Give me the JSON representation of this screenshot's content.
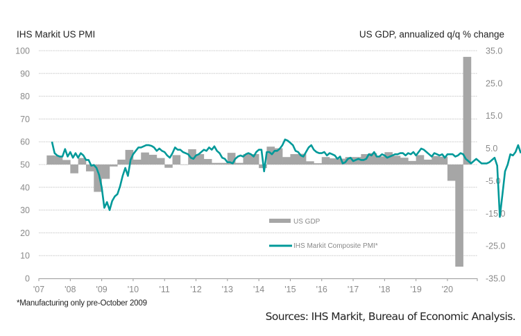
{
  "chart_data": {
    "type": "bar+line",
    "left_axis_title": "IHS Markit US PMI",
    "right_axis_title": "US GDP, annualized q/q % change",
    "left_ylim": [
      0,
      100
    ],
    "left_ticks": [
      "0",
      "10",
      "20",
      "30",
      "40",
      "50",
      "60",
      "70",
      "80",
      "90",
      "100"
    ],
    "right_ylim": [
      -35,
      35
    ],
    "right_ticks": [
      "-35.0",
      "-25.0",
      "-15.0",
      "-5.0",
      "5.0",
      "15.0",
      "25.0",
      "35.0"
    ],
    "xlim": [
      2007.0,
      2020.95
    ],
    "x_ticks": [
      "'07",
      "'08",
      "'09",
      "'10",
      "'11",
      "'12",
      "'13",
      "'14",
      "'15",
      "'16",
      "'17",
      "'18",
      "'19",
      "'20"
    ],
    "grid": true,
    "legend": [
      {
        "name": "US GDP",
        "type": "bar",
        "color": "#a6a6a6"
      },
      {
        "name": "IHS Markit Composite PMI*",
        "type": "line",
        "color": "#009999"
      }
    ],
    "legend_position": "bottom-right",
    "series": [
      {
        "name": "US GDP",
        "axis": "right",
        "frequency": "quarterly",
        "start": 2007.25,
        "values": [
          2.8,
          2.7,
          1.4,
          -2.7,
          2.0,
          -2.1,
          -8.4,
          -4.4,
          -0.6,
          1.5,
          4.5,
          1.5,
          3.7,
          3.0,
          2.0,
          -1.0,
          2.9,
          -0.1,
          4.7,
          3.2,
          1.7,
          0.5,
          0.5,
          3.6,
          0.5,
          3.2,
          3.2,
          -1.1,
          5.5,
          5.0,
          2.3,
          3.2,
          3.3,
          1.0,
          0.4,
          2.3,
          1.9,
          1.8,
          2.3,
          2.3,
          3.2,
          3.5,
          2.5,
          3.8,
          2.7,
          2.1,
          1.1,
          2.9,
          1.5,
          2.6,
          2.4,
          -5.0,
          -31.4,
          33.1
        ]
      },
      {
        "name": "IHS Markit Composite PMI*",
        "axis": "left",
        "frequency": "monthly",
        "start": 2007.417,
        "values": [
          60.0,
          55.0,
          54.0,
          53.5,
          53.5,
          56.8,
          53.5,
          55.5,
          53.0,
          55.0,
          53.0,
          55.0,
          54.0,
          52.0,
          52.0,
          49.5,
          49.8,
          48.5,
          45.5,
          40.0,
          31.0,
          33.5,
          30.0,
          34.0,
          36.0,
          37.0,
          40.5,
          45.0,
          48.5,
          45.0,
          52.0,
          54.5,
          56.0,
          57.5,
          57.5,
          58.0,
          58.5,
          58.5,
          58.2,
          57.5,
          56.0,
          57.0,
          56.0,
          55.5,
          54.0,
          53.0,
          55.0,
          57.5,
          56.5,
          56.5,
          55.5,
          55.0,
          54.5,
          53.0,
          52.5,
          54.0,
          54.5,
          55.5,
          56.5,
          56.0,
          57.5,
          56.5,
          58.0,
          56.0,
          55.0,
          53.0,
          52.5,
          51.0,
          51.0,
          50.5,
          52.5,
          53.5,
          54.0,
          53.5,
          54.5,
          55.0,
          54.5,
          53.5,
          55.5,
          56.5,
          56.5,
          47.0,
          55.5,
          55.5,
          54.5,
          56.0,
          56.0,
          57.0,
          58.5,
          61.0,
          60.5,
          59.5,
          58.5,
          56.0,
          55.5,
          54.0,
          53.5,
          55.5,
          57.5,
          58.5,
          56.5,
          55.5,
          55.0,
          55.0,
          55.5,
          54.0,
          55.0,
          54.5,
          54.0,
          52.5,
          53.5,
          50.5,
          51.0,
          52.5,
          53.0,
          51.5,
          52.0,
          52.5,
          52.0,
          52.0,
          52.5,
          54.5,
          54.0,
          55.5,
          53.5,
          53.5,
          54.5,
          54.0,
          53.0,
          53.5,
          54.0,
          54.5,
          54.5,
          55.0,
          55.0,
          54.0,
          55.0,
          54.5,
          55.5,
          54.0,
          55.5,
          57.0,
          56.5,
          55.5,
          54.5,
          53.5,
          55.0,
          54.5,
          54.0,
          54.5,
          53.0,
          54.5,
          54.5,
          54.5,
          53.5,
          54.0,
          55.0,
          54.5,
          52.5,
          51.5,
          50.5,
          51.5,
          52.5,
          51.5,
          50.5,
          50.5,
          50.5,
          51.0,
          52.0,
          53.0,
          49.5,
          27.0,
          37.0,
          47.0,
          50.0,
          54.5,
          54.0,
          55.5,
          58.5,
          55.0
        ]
      }
    ],
    "footnote": "*Manufacturing only pre-October 2009",
    "source": "Sources: IHS Markit, Bureau of Economic Analysis."
  }
}
